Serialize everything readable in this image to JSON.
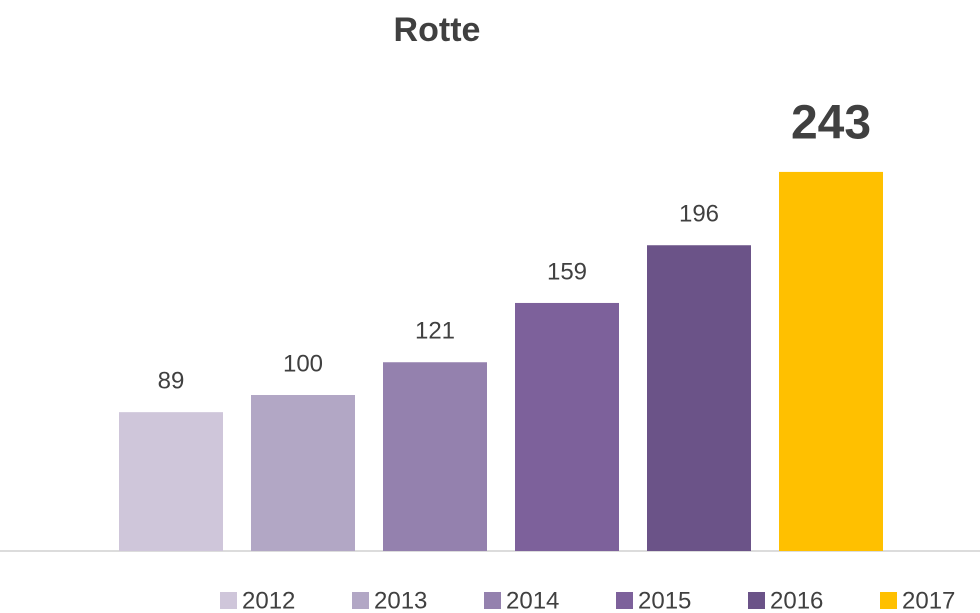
{
  "chart_data": {
    "type": "bar",
    "title": "Rotte",
    "series": [
      {
        "name": "2012",
        "color": "#cfc6da",
        "values": [
          89
        ]
      },
      {
        "name": "2013",
        "color": "#b2a7c5",
        "values": [
          100
        ]
      },
      {
        "name": "2014",
        "color": "#9481ae",
        "values": [
          121
        ]
      },
      {
        "name": "2015",
        "color": "#7d619b",
        "values": [
          159
        ]
      },
      {
        "name": "2016",
        "color": "#6b5388",
        "values": [
          196
        ]
      },
      {
        "name": "2017",
        "color": "#ffc000",
        "values": [
          243
        ],
        "bold": true
      }
    ],
    "ylim": [
      0,
      250
    ],
    "legend": "bottom"
  }
}
